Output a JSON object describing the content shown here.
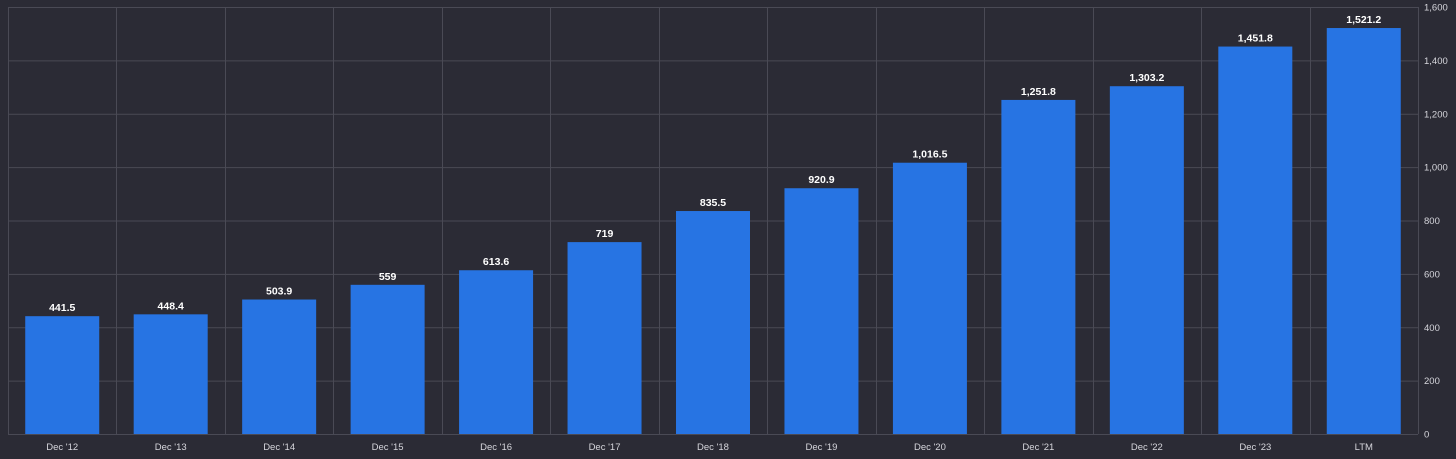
{
  "chart_data": {
    "type": "bar",
    "categories": [
      "Dec '12",
      "Dec '13",
      "Dec '14",
      "Dec '15",
      "Dec '16",
      "Dec '17",
      "Dec '18",
      "Dec '19",
      "Dec '20",
      "Dec '21",
      "Dec '22",
      "Dec '23",
      "LTM"
    ],
    "values": [
      441.5,
      448.4,
      503.9,
      559,
      613.6,
      719,
      835.5,
      920.9,
      1016.5,
      1251.8,
      1303.2,
      1451.8,
      1521.2
    ],
    "value_labels": [
      "441.5",
      "448.4",
      "503.9",
      "559",
      "613.6",
      "719",
      "835.5",
      "920.9",
      "1,016.5",
      "1,251.8",
      "1,303.2",
      "1,451.8",
      "1,521.2"
    ],
    "title": "",
    "xlabel": "",
    "ylabel": "",
    "ylim": [
      0,
      1600
    ],
    "yticks": [
      0,
      200,
      400,
      600,
      800,
      1000,
      1200,
      1400,
      1600
    ],
    "ytick_labels": [
      "0",
      "200",
      "400",
      "600",
      "800",
      "1,000",
      "1,200",
      "1,400",
      "1,600"
    ],
    "y_axis_side": "right",
    "grid": true,
    "legend": "none",
    "colors": {
      "background": "#2b2b35",
      "bar": "#2774e3",
      "grid": "#4a4a55",
      "text": "#d6d6dc",
      "value_label": "#ffffff"
    }
  }
}
